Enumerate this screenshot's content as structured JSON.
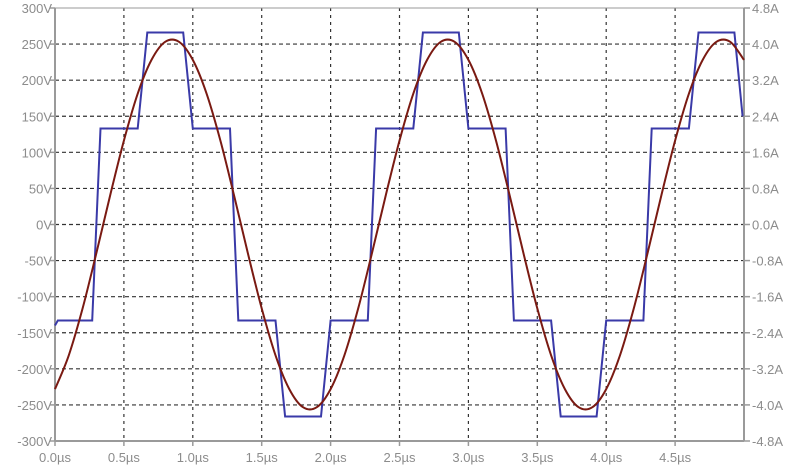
{
  "chart_data": {
    "type": "line",
    "title": "",
    "xlabel": "",
    "ylabel": "",
    "y2label": "",
    "xlim": [
      0,
      5
    ],
    "ylim": [
      -300,
      300
    ],
    "y2lim": [
      -4.8,
      4.8
    ],
    "grid": true,
    "x_tick_labels": [
      "0.0µs",
      "0.5µs",
      "1.0µs",
      "1.5µs",
      "2.0µs",
      "2.5µs",
      "3.0µs",
      "3.5µs",
      "4.0µs",
      "4.5µs"
    ],
    "x_ticks": [
      0,
      0.5,
      1,
      1.5,
      2,
      2.5,
      3,
      3.5,
      4,
      4.5
    ],
    "y_tick_labels": [
      "300V",
      "250V",
      "200V",
      "150V",
      "100V",
      "50V",
      "0V",
      "-50V",
      "-100V",
      "-150V",
      "-200V",
      "-250V",
      "-300V"
    ],
    "y_ticks": [
      300,
      250,
      200,
      150,
      100,
      50,
      0,
      -50,
      -100,
      -150,
      -200,
      -250,
      -300
    ],
    "y2_tick_labels": [
      "4.8A",
      "4.0A",
      "3.2A",
      "2.4A",
      "1.6A",
      "0.8A",
      "0.0A",
      "-0.8A",
      "-1.6A",
      "-2.4A",
      "-3.2A",
      "-4.0A",
      "-4.8A"
    ],
    "y2_ticks": [
      4.8,
      4.0,
      3.2,
      2.4,
      1.6,
      0.8,
      0,
      -0.8,
      -1.6,
      -2.4,
      -3.2,
      -4.0,
      -4.8
    ],
    "series": [
      {
        "axis": "left",
        "color": "#3a3aa8",
        "points": [
          [
            0,
            -140
          ],
          [
            0.02,
            -133
          ],
          [
            0.27,
            -133
          ],
          [
            0.33,
            133
          ],
          [
            0.6,
            133
          ],
          [
            0.67,
            266
          ],
          [
            0.93,
            266
          ],
          [
            1.0,
            133
          ],
          [
            1.27,
            133
          ],
          [
            1.33,
            -133
          ],
          [
            1.6,
            -133
          ],
          [
            1.67,
            -266
          ],
          [
            1.93,
            -266
          ],
          [
            2.0,
            -133
          ],
          [
            2.27,
            -133
          ],
          [
            2.33,
            133
          ],
          [
            2.6,
            133
          ],
          [
            2.67,
            266
          ],
          [
            2.93,
            266
          ],
          [
            3.0,
            133
          ],
          [
            3.27,
            133
          ],
          [
            3.33,
            -133
          ],
          [
            3.6,
            -133
          ],
          [
            3.67,
            -266
          ],
          [
            3.93,
            -266
          ],
          [
            4.0,
            -133
          ],
          [
            4.27,
            -133
          ],
          [
            4.33,
            133
          ],
          [
            4.6,
            133
          ],
          [
            4.67,
            266
          ],
          [
            4.93,
            266
          ],
          [
            4.99,
            150
          ]
        ]
      },
      {
        "axis": "right",
        "color": "#7a1a12",
        "x_start": 0,
        "x_step": 0.1,
        "values": [
          -3.65,
          -2.9,
          -1.86,
          -0.64,
          0.64,
          1.86,
          2.9,
          3.65,
          4.05,
          4.05,
          3.65,
          2.9,
          1.86,
          0.64,
          -0.64,
          -1.86,
          -2.9,
          -3.65,
          -4.05,
          -4.05,
          -3.65,
          -2.9,
          -1.86,
          -0.64,
          0.64,
          1.86,
          2.9,
          3.65,
          4.05,
          4.05,
          3.65,
          2.9,
          1.86,
          0.64,
          -0.64,
          -1.86,
          -2.9,
          -3.65,
          -4.05,
          -4.05,
          -3.65,
          -2.9,
          -1.86,
          -0.64,
          0.64,
          1.86,
          2.9,
          3.65,
          4.05,
          4.05,
          3.65
        ]
      }
    ],
    "colors": {
      "axis": "#9a9a9a",
      "grid": "#333333",
      "tick_text": "#8c8c8c",
      "background": "#ffffff"
    }
  }
}
